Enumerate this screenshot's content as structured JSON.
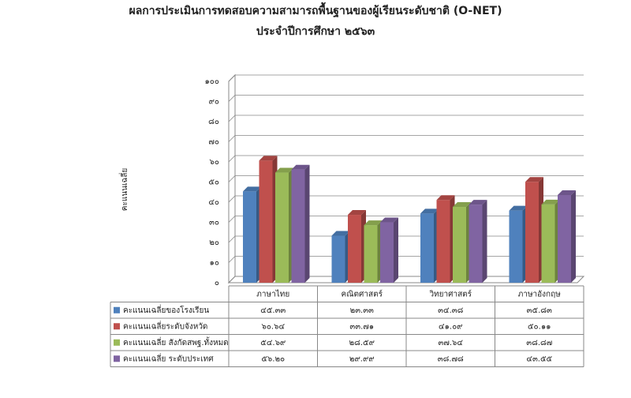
{
  "chart_data": {
    "type": "bar3d",
    "title": "ผลการประเมินการทดสอบความสามารถพื้นฐานของผู้เรียนระดับชาติ (O-NET)",
    "subtitle": "ประจำปีการศึกษา ๒๕๖๓",
    "y_label": "คะแนนเฉลี่ย",
    "categories": [
      "ภาษาไทย",
      "คณิตศาสตร์",
      "วิทยาศาสตร์",
      "ภาษาอังกฤษ"
    ],
    "series": [
      {
        "name": "คะแนนเฉลี่ยของโรงเรียน",
        "color": "#4f81bd",
        "values": [
          45.33,
          23.33,
          34.38,
          35.83
        ],
        "value_labels": [
          "๔๕.๓๓",
          "๒๓.๓๓",
          "๓๔.๓๘",
          "๓๕.๘๓"
        ]
      },
      {
        "name": "คะแนนเฉลี่ยระดับจังหวัด",
        "color": "#c0504d",
        "values": [
          60.64,
          33.71,
          41.09,
          50.11
        ],
        "value_labels": [
          "๖๐.๖๔",
          "๓๓.๗๑",
          "๔๑.๐๙",
          "๕๐.๑๑"
        ]
      },
      {
        "name": "คะแนนเฉลี่ย  สังกัดสพฐ.ทั้งหมด",
        "color": "#9bbb59",
        "values": [
          54.69,
          28.59,
          37.64,
          38.87
        ],
        "value_labels": [
          "๕๔.๖๙",
          "๒๘.๕๙",
          "๓๗.๖๔",
          "๓๘.๘๗"
        ]
      },
      {
        "name": "คะแนนเฉลี่ย ระดับประเทศ",
        "color": "#8064a2",
        "values": [
          56.2,
          29.99,
          38.78,
          43.55
        ],
        "value_labels": [
          "๕๖.๒๐",
          "๒๙.๙๙",
          "๓๘.๗๘",
          "๔๓.๕๕"
        ]
      }
    ],
    "ylim": [
      0,
      100
    ],
    "yticks": [
      {
        "value": 0,
        "label": "๐"
      },
      {
        "value": 10,
        "label": "๑๐"
      },
      {
        "value": 20,
        "label": "๒๐"
      },
      {
        "value": 30,
        "label": "๓๐"
      },
      {
        "value": 40,
        "label": "๔๐"
      },
      {
        "value": 50,
        "label": "๕๐"
      },
      {
        "value": 60,
        "label": "๖๐"
      },
      {
        "value": 70,
        "label": "๗๐"
      },
      {
        "value": 80,
        "label": "๘๐"
      },
      {
        "value": 90,
        "label": "๙๐"
      },
      {
        "value": 100,
        "label": "๑๐๐"
      }
    ],
    "grid": true
  }
}
